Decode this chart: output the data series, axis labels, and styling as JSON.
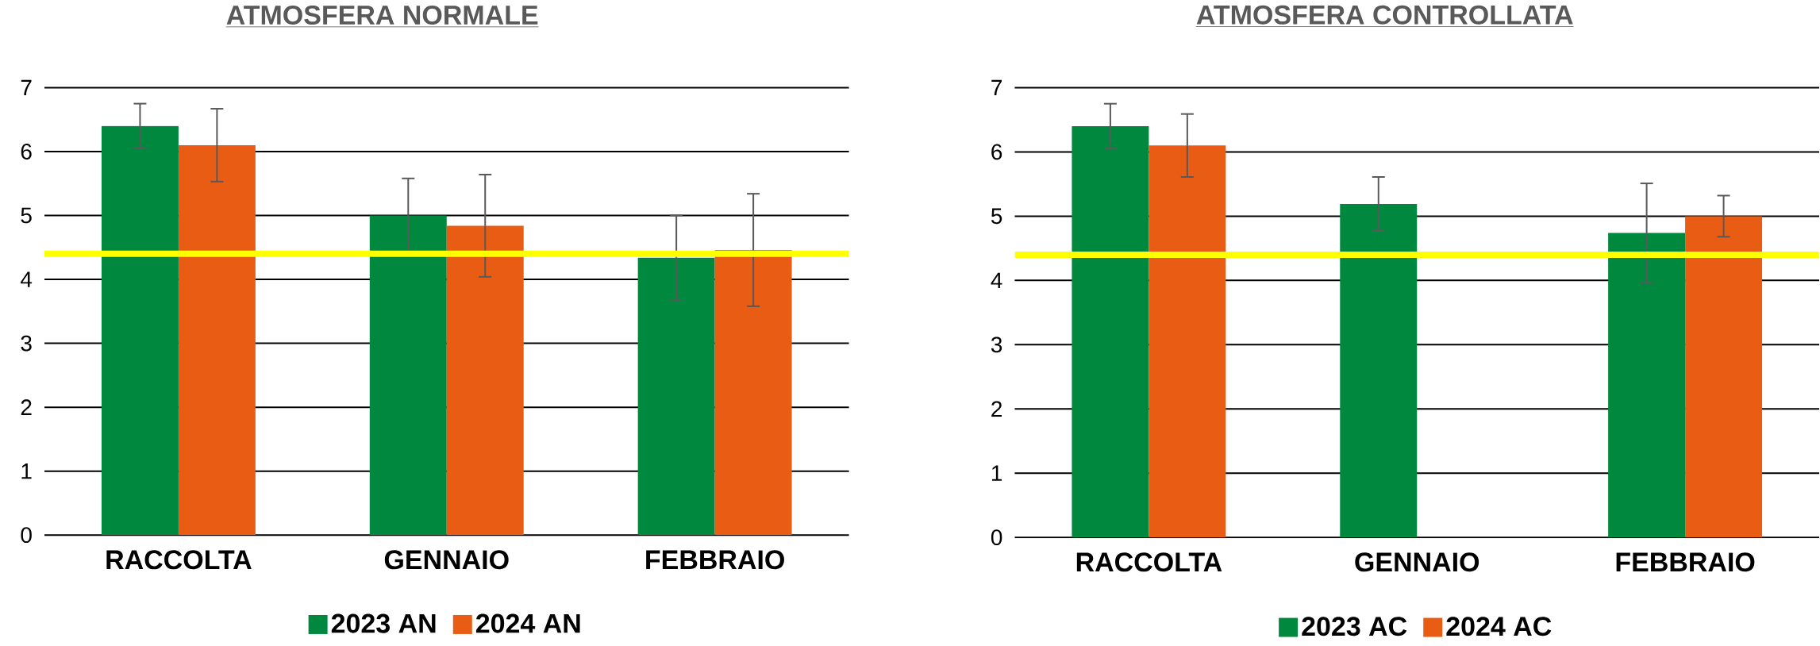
{
  "chart_data": [
    {
      "type": "bar",
      "title": "ATMOSFERA NORMALE",
      "categories": [
        "RACCOLTA",
        "GENNAIO",
        "FEBBRAIO"
      ],
      "series": [
        {
          "name": "2023 AN",
          "color": "#00883f",
          "values": [
            6.4,
            5.0,
            4.34
          ],
          "errors": [
            0.35,
            0.58,
            0.66
          ]
        },
        {
          "name": "2024 AN",
          "color": "#e95c14",
          "values": [
            6.1,
            4.84,
            4.46
          ],
          "errors": [
            0.57,
            0.8,
            0.88
          ]
        }
      ],
      "ylim": [
        0,
        7
      ],
      "yticks": [
        0,
        1,
        2,
        3,
        4,
        5,
        6,
        7
      ],
      "grid": "y",
      "legend": "bottom",
      "ref_lines": [
        {
          "axis": "y",
          "value": 4.4,
          "color": "#ffff00"
        }
      ]
    },
    {
      "type": "bar",
      "title": "ATMOSFERA CONTROLLATA",
      "categories": [
        "RACCOLTA",
        "GENNAIO",
        "FEBBRAIO"
      ],
      "series": [
        {
          "name": "2023 AC",
          "color": "#00883f",
          "values": [
            6.4,
            5.19,
            4.74
          ],
          "errors": [
            0.35,
            0.42,
            0.77
          ]
        },
        {
          "name": "2024 AC",
          "color": "#e95c14",
          "values": [
            6.1,
            null,
            5.0
          ],
          "errors": [
            0.49,
            null,
            0.32
          ]
        }
      ],
      "ylim": [
        0,
        7
      ],
      "yticks": [
        0,
        1,
        2,
        3,
        4,
        5,
        6,
        7
      ],
      "grid": "y",
      "legend": "bottom",
      "ref_lines": [
        {
          "axis": "y",
          "value": 4.4,
          "color": "#ffff00"
        }
      ]
    }
  ]
}
